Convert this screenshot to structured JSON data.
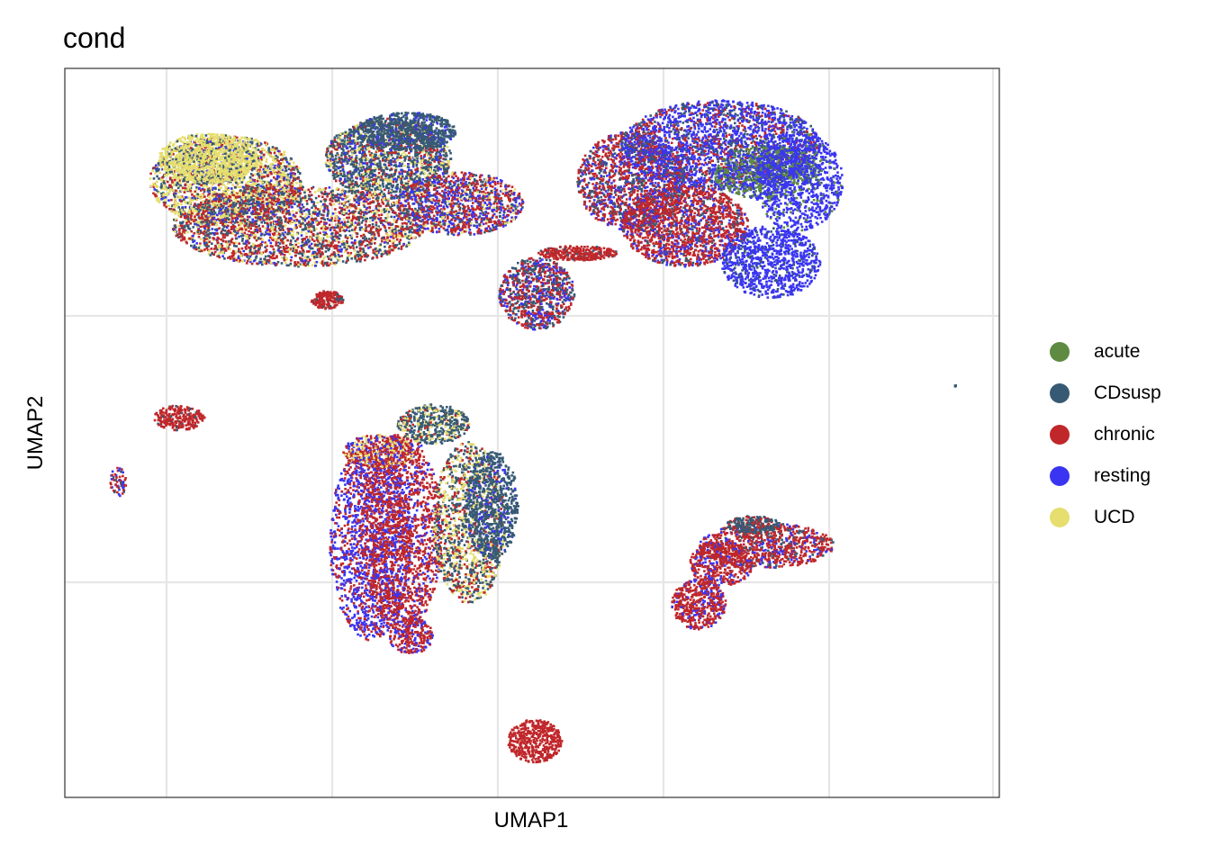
{
  "chart_data": {
    "type": "scatter",
    "title": "cond",
    "xlabel": "UMAP1",
    "ylabel": "UMAP2",
    "grid": true,
    "legend_position": "right",
    "series": [
      {
        "name": "acute",
        "color": "#5e8a41"
      },
      {
        "name": "CDsusp",
        "color": "#375a74"
      },
      {
        "name": "chronic",
        "color": "#c0272a"
      },
      {
        "name": "resting",
        "color": "#3a35f2"
      },
      {
        "name": "UCD",
        "color": "#e6de6e"
      }
    ]
  }
}
